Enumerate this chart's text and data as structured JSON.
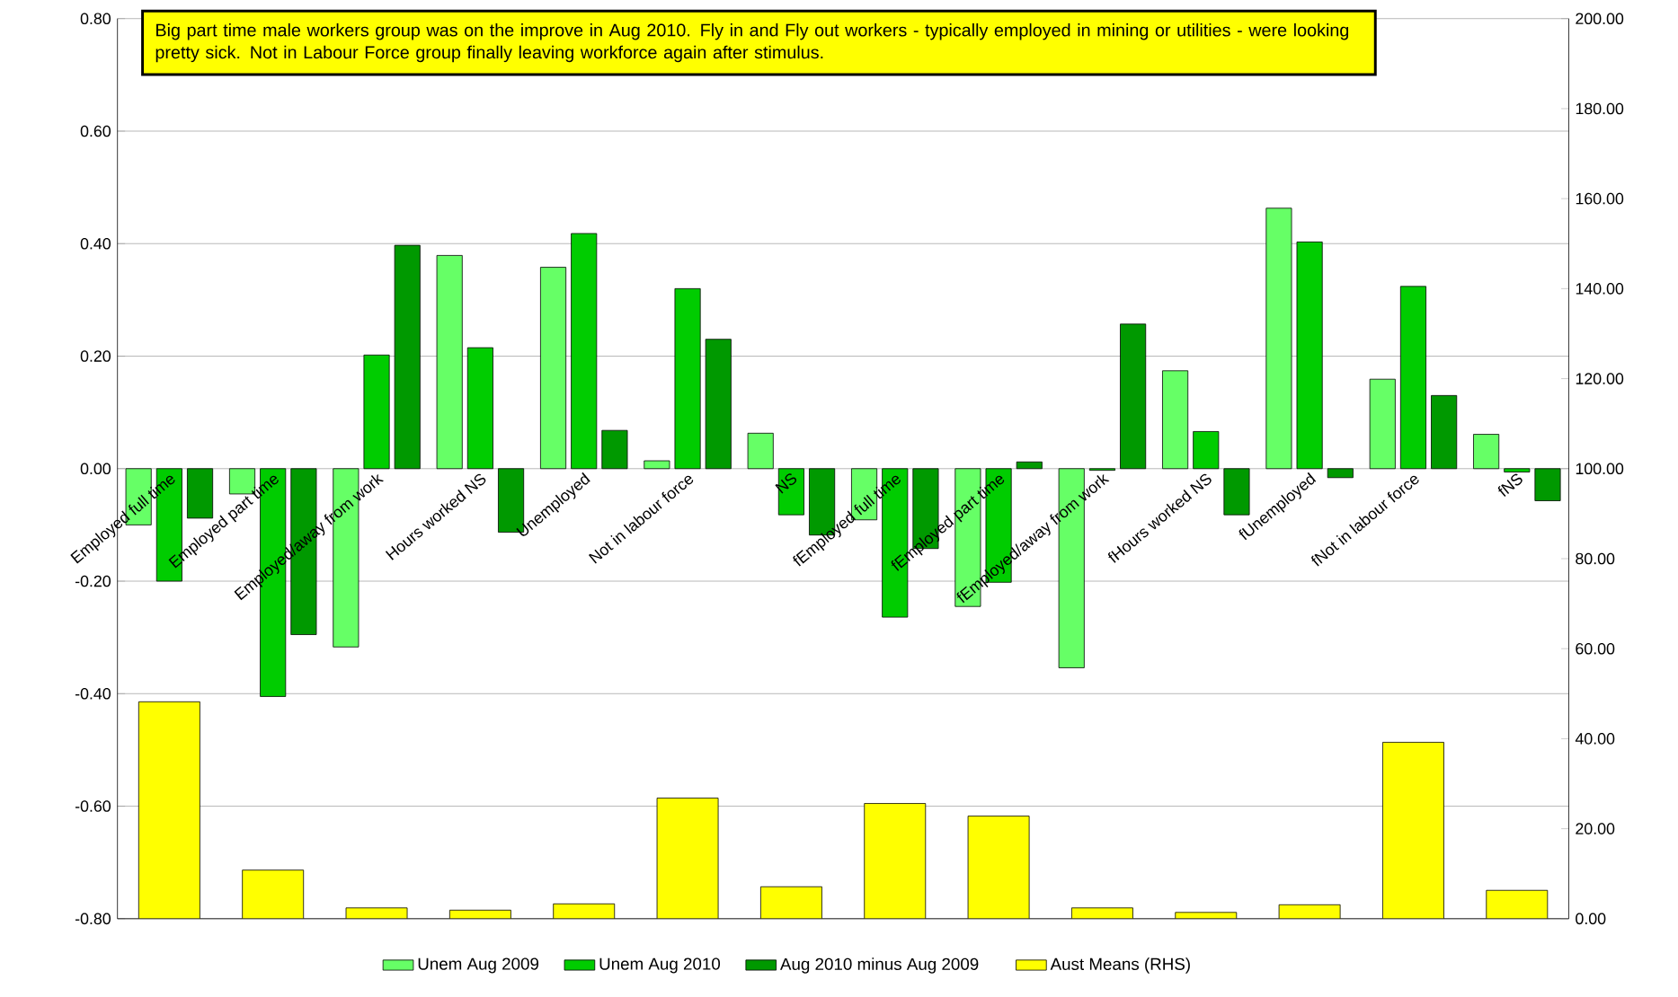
{
  "chart_data": {
    "type": "bar",
    "annotations": [
      "Big part time male workers group was on the improve in Aug 2010.  Fly in and Fly out workers - typically employed in mining or utilities - were looking pretty sick. Not in Labour Force group finally leaving workforce again after stimulus."
    ],
    "categories": [
      "Employed full time",
      "Employed part time",
      "Employed/away from work",
      "Hours worked NS",
      "Unemployed",
      "Not in labour force",
      "NS",
      "fEmployed full time",
      "fEmployed part time",
      "fEmployed/away from work",
      "fHours worked NS",
      "fUnemployed",
      "fNot in labour force",
      "fNS"
    ],
    "series": [
      {
        "name": "Unem Aug 2009",
        "color": "#66ff66",
        "values": [
          -0.1,
          -0.045,
          -0.317,
          0.379,
          0.358,
          0.014,
          0.063,
          -0.091,
          -0.245,
          -0.354,
          0.174,
          0.463,
          0.159,
          0.061
        ]
      },
      {
        "name": "Unem Aug 2010",
        "color": "#00cc00",
        "values": [
          -0.2,
          -0.405,
          0.202,
          0.215,
          0.418,
          0.32,
          -0.082,
          -0.264,
          -0.202,
          -0.003,
          0.066,
          0.403,
          0.324,
          -0.006
        ]
      },
      {
        "name": "Aug 2010 minus Aug 2009",
        "color": "#009900",
        "values": [
          -0.088,
          -0.295,
          0.397,
          -0.113,
          0.068,
          0.23,
          -0.118,
          -0.142,
          0.012,
          0.257,
          -0.082,
          -0.016,
          0.13,
          -0.057
        ]
      },
      {
        "name": "Aust Means (RHS)",
        "color": "#ffff00",
        "axis": "y2",
        "values": [
          48.2,
          10.8,
          2.4,
          1.9,
          3.3,
          26.8,
          7.1,
          25.6,
          22.8,
          2.4,
          1.4,
          3.1,
          39.2,
          6.3
        ]
      }
    ],
    "ylim": [
      -0.8,
      0.8
    ],
    "yticks": [
      {
        "value": -0.8,
        "label": "-0.80"
      },
      {
        "value": -0.6,
        "label": "-0.60"
      },
      {
        "value": -0.4,
        "label": "-0.40"
      },
      {
        "value": -0.2,
        "label": "-0.20"
      },
      {
        "value": 0,
        "label": "0.00"
      },
      {
        "value": 0.2,
        "label": "0.20"
      },
      {
        "value": 0.4,
        "label": "0.40"
      },
      {
        "value": 0.6,
        "label": "0.60"
      },
      {
        "value": 0.8,
        "label": "0.80"
      }
    ],
    "y2lim": [
      0,
      200
    ],
    "y2ticks": [
      {
        "value": 0,
        "label": "0.00"
      },
      {
        "value": 20,
        "label": "20.00"
      },
      {
        "value": 40,
        "label": "40.00"
      },
      {
        "value": 60,
        "label": "60.00"
      },
      {
        "value": 80,
        "label": "80.00"
      },
      {
        "value": 100,
        "label": "100.00"
      },
      {
        "value": 120,
        "label": "120.00"
      },
      {
        "value": 140,
        "label": "140.00"
      },
      {
        "value": 160,
        "label": "160.00"
      },
      {
        "value": 180,
        "label": "180.00"
      },
      {
        "value": 200,
        "label": "200.00"
      }
    ],
    "grid": "y",
    "legend": "bottom"
  }
}
